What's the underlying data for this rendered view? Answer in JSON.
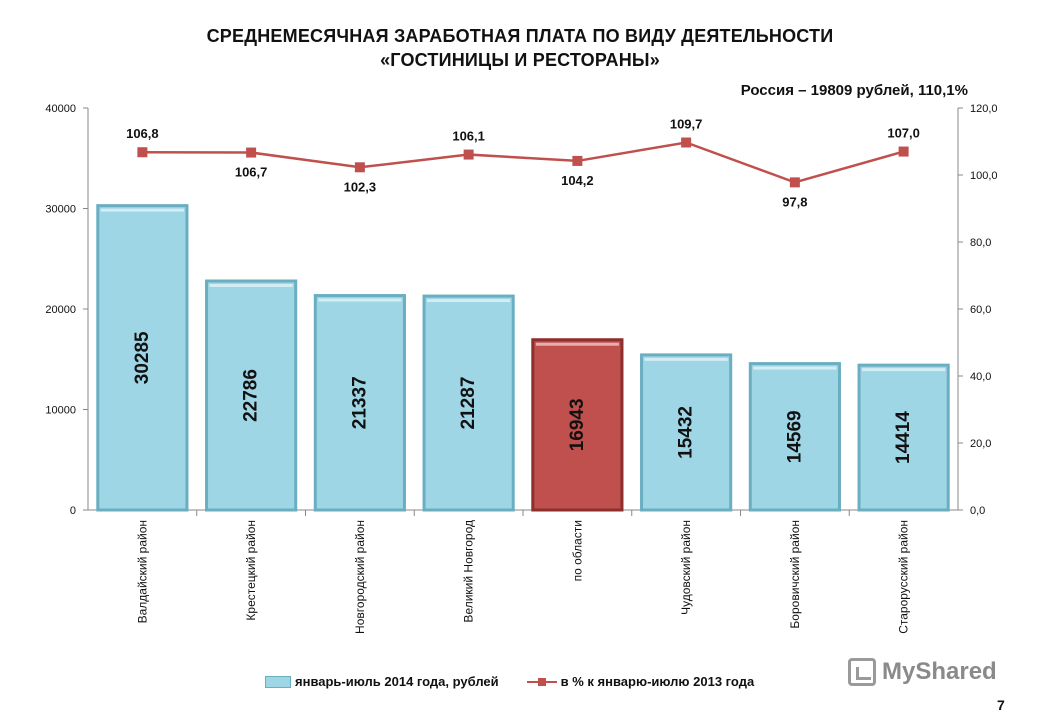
{
  "header": {
    "title_line1": "СРЕДНЕМЕСЯЧНАЯ ЗАРАБОТНАЯ ПЛАТА ПО ВИДУ ДЕЯТЕЛЬНОСТИ",
    "title_line2": "«ГОСТИНИЦЫ И РЕСТОРАНЫ»",
    "subtitle": "Россия – 19809 рублей, 110,1%"
  },
  "legend": {
    "bar_label": "январь-июль 2014 года, рублей",
    "line_label": "в % к январю-июлю 2013 года"
  },
  "watermark": {
    "text": "MyShared",
    "icon": "presentation-board-icon"
  },
  "page_number": "7",
  "colors": {
    "bar_fill": "#9fd6e6",
    "bar_border": "#6aaec2",
    "highlight_fill": "#c0504d",
    "highlight_border": "#8c2f2d",
    "line": "#c0504d"
  },
  "chart_data": {
    "type": "bar",
    "combo_with": "line",
    "categories": [
      "Валдайский район",
      "Крестецкий район",
      "Новгородский район",
      "Великий Новгород",
      "по области",
      "Чудовский район",
      "Боровичский район",
      "Старорусский район"
    ],
    "series": [
      {
        "type": "bar",
        "axis": "left",
        "values": [
          30285,
          22786,
          21337,
          21287,
          16943,
          15432,
          14569,
          14414
        ],
        "labels": [
          "30285",
          "22786",
          "21337",
          "21287",
          "16943",
          "15432",
          "14569",
          "14414"
        ],
        "highlight_index": 4
      },
      {
        "type": "line",
        "axis": "right",
        "values": [
          106.8,
          106.7,
          102.3,
          106.1,
          104.2,
          109.7,
          97.8,
          107.0
        ],
        "labels": [
          "106,8",
          "106,7",
          "102,3",
          "106,1",
          "104,2",
          "109,7",
          "97,8",
          "107,0"
        ]
      }
    ],
    "y_left": {
      "ylim": [
        0,
        40000
      ],
      "ticks": [
        "0",
        "10000",
        "20000",
        "30000",
        "40000"
      ]
    },
    "y_right": {
      "ylim": [
        0,
        120
      ],
      "ticks": [
        "0,0",
        "20,0",
        "40,0",
        "60,0",
        "80,0",
        "100,0",
        "120,0"
      ]
    },
    "grid": false,
    "legend_position": "bottom"
  }
}
